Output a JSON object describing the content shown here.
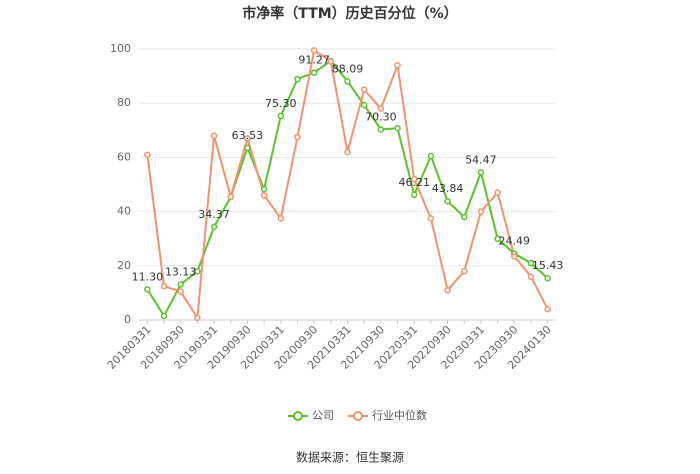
{
  "chart_data": {
    "type": "line",
    "title": "市净率（TTM）历史百分位（%）",
    "categories": [
      "20180331",
      null,
      "20180930",
      null,
      "20190331",
      null,
      "20190930",
      null,
      "20200331",
      null,
      "20200930",
      null,
      "20210331",
      null,
      "20210930",
      null,
      "20220331",
      null,
      "20220930",
      null,
      "20230331",
      null,
      "20230930",
      null,
      "20240130"
    ],
    "series": [
      {
        "name": "公司",
        "color": "#5ac22e",
        "values": [
          11.3,
          1.5,
          13.13,
          18,
          34.37,
          45.4,
          63.53,
          48.3,
          75.3,
          88.9,
          91.27,
          95.6,
          88.09,
          79.3,
          70.3,
          70.8,
          46.21,
          60.5,
          43.84,
          38,
          54.47,
          30,
          24.49,
          21,
          15.43
        ],
        "value_labels": [
          "11.30",
          null,
          "13.13",
          null,
          "34.37",
          null,
          "63.53",
          null,
          "75.30",
          null,
          "91.27",
          null,
          "88.09",
          null,
          "70.30",
          null,
          "46.21",
          null,
          "43.84",
          null,
          "54.47",
          null,
          "24.49",
          null,
          "15.43"
        ]
      },
      {
        "name": "行业中位数",
        "color": "#f4916e",
        "values": [
          61,
          12.5,
          10.5,
          0.8,
          68,
          45.5,
          67,
          46,
          37.5,
          67.5,
          99.5,
          95.5,
          62,
          85,
          78,
          94,
          52,
          37.5,
          11,
          18,
          40,
          47,
          23.5,
          16,
          4
        ]
      }
    ],
    "ylim": [
      0,
      100
    ],
    "yticks": [
      0,
      20,
      40,
      60,
      80,
      100
    ],
    "grid": true,
    "source": "数据来源：恒生聚源"
  }
}
